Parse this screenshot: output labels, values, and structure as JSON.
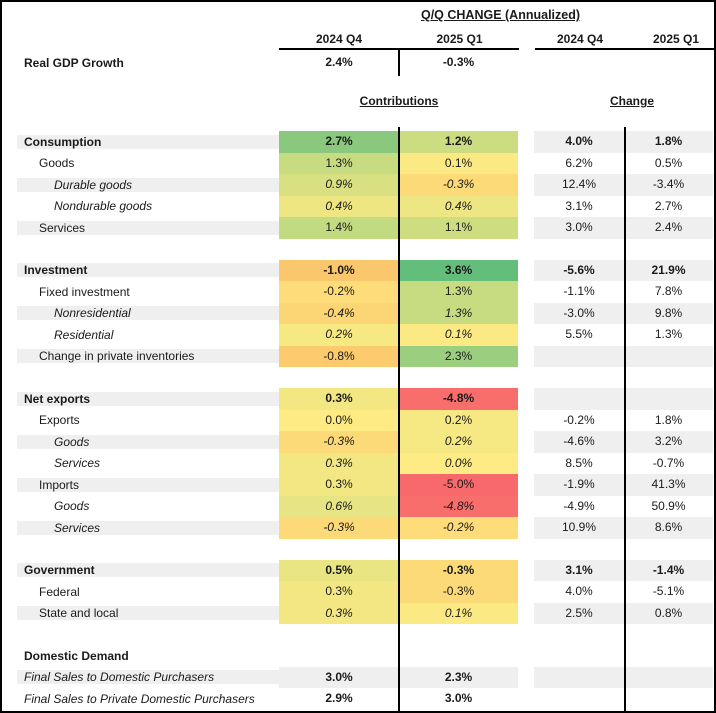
{
  "chart_data": {
    "type": "table",
    "title": "Q/Q CHANGE (Annualized)",
    "column_groups": [
      {
        "label": "Contributions",
        "columns": [
          "2024 Q4",
          "2025 Q1"
        ]
      },
      {
        "label": "Change",
        "columns": [
          "2024 Q4",
          "2025 Q1"
        ]
      }
    ],
    "top_row": {
      "label": "Real GDP Growth",
      "contributions": [
        "2.4%",
        "-0.3%"
      ]
    },
    "colors": {
      "stripe": "#efefef",
      "divider": "#000000",
      "heat_min_red": "#F8696B",
      "heat_mid_yellow": "#FFEB84",
      "heat_max_green": "#63BE7B"
    },
    "sections": [
      {
        "rows": [
          {
            "label": "Consumption",
            "level": 0,
            "bold": true,
            "stripe": true,
            "contributions": [
              "2.7%",
              "1.2%"
            ],
            "contribution_colors": [
              "#8AC97D",
              "#CBDC81"
            ],
            "change": [
              "4.0%",
              "1.8%"
            ]
          },
          {
            "label": "Goods",
            "level": 1,
            "stripe": false,
            "contributions": [
              "1.3%",
              "0.1%"
            ],
            "contribution_colors": [
              "#C7DB81",
              "#FBEA84"
            ],
            "change": [
              "6.2%",
              "0.5%"
            ]
          },
          {
            "label": "Durable goods",
            "level": 2,
            "stripe": true,
            "label_italic": true,
            "contrib_italic": true,
            "contributions": [
              "0.9%",
              "-0.3%"
            ],
            "contribution_colors": [
              "#D8E082",
              "#FDDA78"
            ],
            "change": [
              "12.4%",
              "-3.4%"
            ]
          },
          {
            "label": "Nondurable goods",
            "level": 2,
            "stripe": false,
            "label_italic": true,
            "contrib_italic": true,
            "contributions": [
              "0.4%",
              "0.4%"
            ],
            "contribution_colors": [
              "#EEE683",
              "#EEE683"
            ],
            "change": [
              "3.1%",
              "2.7%"
            ]
          },
          {
            "label": "Services",
            "level": 1,
            "stripe": true,
            "contributions": [
              "1.4%",
              "1.1%"
            ],
            "contribution_colors": [
              "#C2DA80",
              "#CFDD81"
            ],
            "change": [
              "3.0%",
              "2.4%"
            ]
          }
        ]
      },
      {
        "rows": [
          {
            "label": "Investment",
            "level": 0,
            "bold": true,
            "stripe": true,
            "contributions": [
              "-1.0%",
              "3.6%"
            ],
            "contribution_colors": [
              "#FBC76C",
              "#63BE7B"
            ],
            "change": [
              "-5.6%",
              "21.9%"
            ]
          },
          {
            "label": "Fixed investment",
            "level": 1,
            "stripe": false,
            "contributions": [
              "-0.2%",
              "1.3%"
            ],
            "contribution_colors": [
              "#FDDC79",
              "#C7DB81"
            ],
            "change": [
              "-1.1%",
              "7.8%"
            ]
          },
          {
            "label": "Nonresidential",
            "level": 2,
            "stripe": true,
            "label_italic": true,
            "contrib_italic": true,
            "contributions": [
              "-0.4%",
              "1.3%"
            ],
            "contribution_colors": [
              "#FCD674",
              "#C7DB81"
            ],
            "change": [
              "-3.0%",
              "9.8%"
            ]
          },
          {
            "label": "Residential",
            "level": 2,
            "stripe": false,
            "label_italic": true,
            "contrib_italic": true,
            "contributions": [
              "0.2%",
              "0.1%"
            ],
            "contribution_colors": [
              "#F6E883",
              "#FBEA84"
            ],
            "change": [
              "5.5%",
              "1.3%"
            ]
          },
          {
            "label": "Change in private inventories",
            "level": 1,
            "stripe": true,
            "contributions": [
              "-0.8%",
              "2.3%"
            ],
            "contribution_colors": [
              "#FBCB6E",
              "#9BCE7E"
            ],
            "change": [
              "",
              ""
            ]
          }
        ]
      },
      {
        "rows": [
          {
            "label": "Net exports",
            "level": 0,
            "bold": true,
            "stripe": true,
            "contributions": [
              "0.3%",
              "-4.8%"
            ],
            "contribution_colors": [
              "#F2E783",
              "#F86E6C"
            ],
            "change": [
              "",
              ""
            ]
          },
          {
            "label": "Exports",
            "level": 1,
            "stripe": false,
            "contributions": [
              "0.0%",
              "0.2%"
            ],
            "contribution_colors": [
              "#FFEB84",
              "#F6E883"
            ],
            "change": [
              "-0.2%",
              "1.8%"
            ]
          },
          {
            "label": "Goods",
            "level": 2,
            "stripe": true,
            "label_italic": true,
            "contrib_italic": true,
            "contributions": [
              "-0.3%",
              "0.2%"
            ],
            "contribution_colors": [
              "#FDDA78",
              "#F6E883"
            ],
            "change": [
              "-4.6%",
              "3.2%"
            ]
          },
          {
            "label": "Services",
            "level": 2,
            "stripe": false,
            "label_italic": true,
            "contrib_italic": true,
            "contributions": [
              "0.3%",
              "0.0%"
            ],
            "contribution_colors": [
              "#F2E783",
              "#FFEB84"
            ],
            "change": [
              "8.5%",
              "-0.7%"
            ]
          },
          {
            "label": "Imports",
            "level": 1,
            "stripe": true,
            "contributions": [
              "0.3%",
              "-5.0%"
            ],
            "contribution_colors": [
              "#F2E783",
              "#F8696B"
            ],
            "change": [
              "-1.9%",
              "41.3%"
            ]
          },
          {
            "label": "Goods",
            "level": 2,
            "stripe": false,
            "label_italic": true,
            "contrib_italic": true,
            "contributions": [
              "0.6%",
              "-4.8%"
            ],
            "contribution_colors": [
              "#E6E483",
              "#F86E6C"
            ],
            "change": [
              "-4.9%",
              "50.9%"
            ]
          },
          {
            "label": "Services",
            "level": 2,
            "stripe": true,
            "label_italic": true,
            "contrib_italic": true,
            "contributions": [
              "-0.3%",
              "-0.2%"
            ],
            "contribution_colors": [
              "#FDDA78",
              "#FDDC79"
            ],
            "change": [
              "10.9%",
              "8.6%"
            ]
          }
        ]
      },
      {
        "rows": [
          {
            "label": "Government",
            "level": 0,
            "bold": true,
            "stripe": true,
            "contributions": [
              "0.5%",
              "-0.3%"
            ],
            "contribution_colors": [
              "#E9E583",
              "#FDDA78"
            ],
            "change": [
              "3.1%",
              "-1.4%"
            ]
          },
          {
            "label": "Federal",
            "level": 1,
            "stripe": false,
            "contributions": [
              "0.3%",
              "-0.3%"
            ],
            "contribution_colors": [
              "#F2E783",
              "#FDDA78"
            ],
            "change": [
              "4.0%",
              "-5.1%"
            ]
          },
          {
            "label": "State and local",
            "level": 1,
            "stripe": true,
            "contrib_italic": true,
            "contributions": [
              "0.3%",
              "0.1%"
            ],
            "contribution_colors": [
              "#F2E783",
              "#FBEA84"
            ],
            "change": [
              "2.5%",
              "0.8%"
            ]
          }
        ]
      },
      {
        "rows": [
          {
            "label": "Domestic Demand",
            "level": 0,
            "bold": true,
            "stripe": false,
            "contributions": [
              "",
              ""
            ],
            "contribution_colors": null,
            "change": [
              "",
              ""
            ]
          },
          {
            "label": "Final Sales to Domestic Purchasers",
            "level": 0,
            "stripe": true,
            "label_italic": true,
            "values_bold": true,
            "contributions": [
              "3.0%",
              "2.3%"
            ],
            "contribution_colors": null,
            "change": [
              "",
              ""
            ]
          },
          {
            "label": "Final Sales to Private Domestic Purchasers",
            "level": 0,
            "stripe": false,
            "label_italic": true,
            "values_bold": true,
            "contributions": [
              "2.9%",
              "3.0%"
            ],
            "contribution_colors": null,
            "change": [
              "",
              ""
            ]
          }
        ]
      }
    ]
  }
}
